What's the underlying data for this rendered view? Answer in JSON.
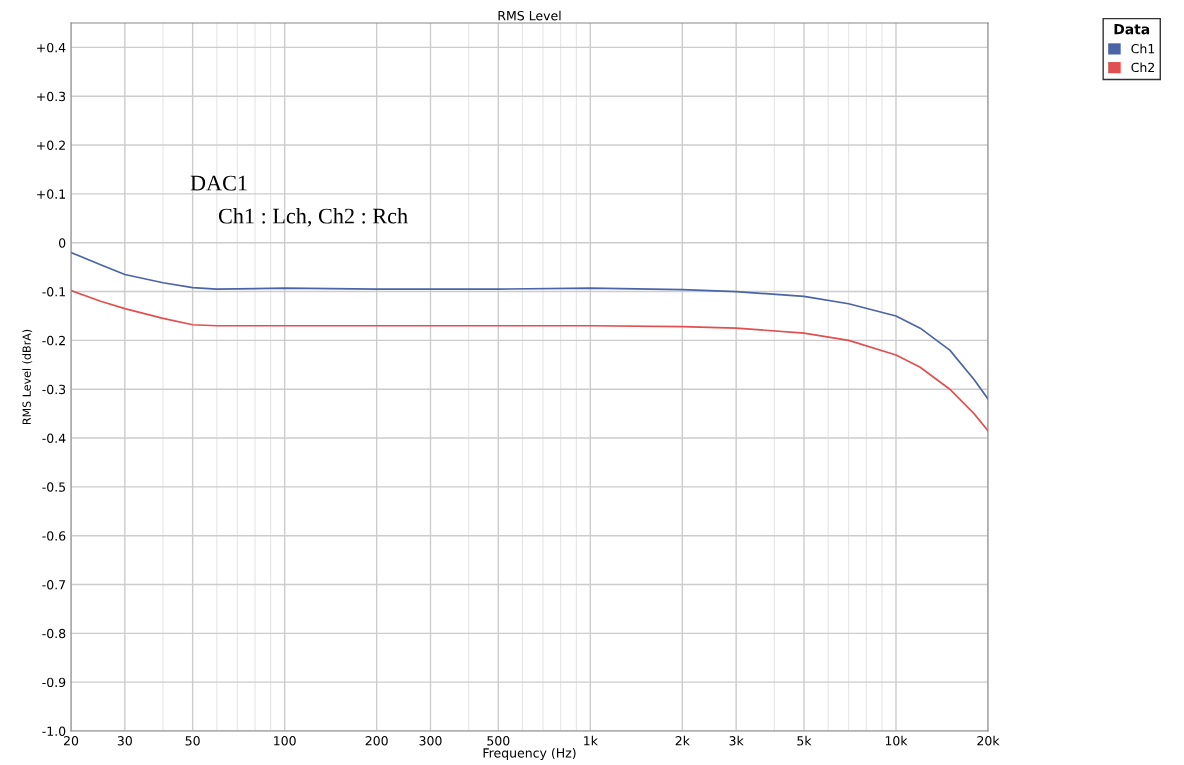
{
  "chart_data": {
    "type": "line",
    "title": "RMS Level",
    "xlabel": "Frequency (Hz)",
    "ylabel": "RMS Level (dBrA)",
    "log": "x",
    "grid": true,
    "legend": "top right",
    "legend_title": "Data",
    "xlim": [
      20,
      20000
    ],
    "xticks": [
      20,
      30,
      50,
      100,
      200,
      300,
      500,
      {
        "value": 1000,
        "label": "1k"
      },
      {
        "value": 2000,
        "label": "2k"
      },
      {
        "value": 3000,
        "label": "3k"
      },
      {
        "value": 5000,
        "label": "5k"
      },
      {
        "value": 10000,
        "label": "10k"
      },
      {
        "value": 20000,
        "label": "20k"
      }
    ],
    "ylim": [
      -1.0,
      0.45
    ],
    "yticks": [
      {
        "value": -1.0,
        "label": "-1.0"
      },
      {
        "value": -0.9,
        "label": "-0.9"
      },
      {
        "value": -0.8,
        "label": "-0.8"
      },
      {
        "value": -0.7,
        "label": "-0.7"
      },
      {
        "value": -0.6,
        "label": "-0.6"
      },
      {
        "value": -0.5,
        "label": "-0.5"
      },
      {
        "value": -0.4,
        "label": "-0.4"
      },
      {
        "value": -0.3,
        "label": "-0.3"
      },
      {
        "value": -0.2,
        "label": "-0.2"
      },
      {
        "value": -0.1,
        "label": "-0.1"
      },
      0,
      {
        "value": 0.1,
        "label": "+0.1"
      },
      {
        "value": 0.2,
        "label": "+0.2"
      },
      {
        "value": 0.3,
        "label": "+0.3"
      },
      {
        "value": 0.4,
        "label": "+0.4"
      }
    ],
    "x": [
      20,
      25,
      30,
      40,
      50,
      60,
      100,
      200,
      500,
      1000,
      2000,
      3000,
      5000,
      7000,
      10000,
      12000,
      15000,
      18000,
      20000
    ],
    "series": [
      {
        "name": "Ch1",
        "color": "#4a64a6",
        "values": [
          -0.02,
          -0.045,
          -0.065,
          -0.082,
          -0.092,
          -0.095,
          -0.093,
          -0.095,
          -0.095,
          -0.093,
          -0.096,
          -0.1,
          -0.11,
          -0.125,
          -0.15,
          -0.175,
          -0.22,
          -0.28,
          -0.32
        ]
      },
      {
        "name": "Ch2",
        "color": "#e05050",
        "values": [
          -0.098,
          -0.12,
          -0.135,
          -0.155,
          -0.168,
          -0.17,
          -0.17,
          -0.17,
          -0.17,
          -0.17,
          -0.172,
          -0.175,
          -0.185,
          -0.2,
          -0.23,
          -0.255,
          -0.3,
          -0.35,
          -0.385
        ]
      }
    ],
    "annotations": [
      "DAC1",
      "Ch1 : Lch, Ch2 : Rch"
    ]
  }
}
